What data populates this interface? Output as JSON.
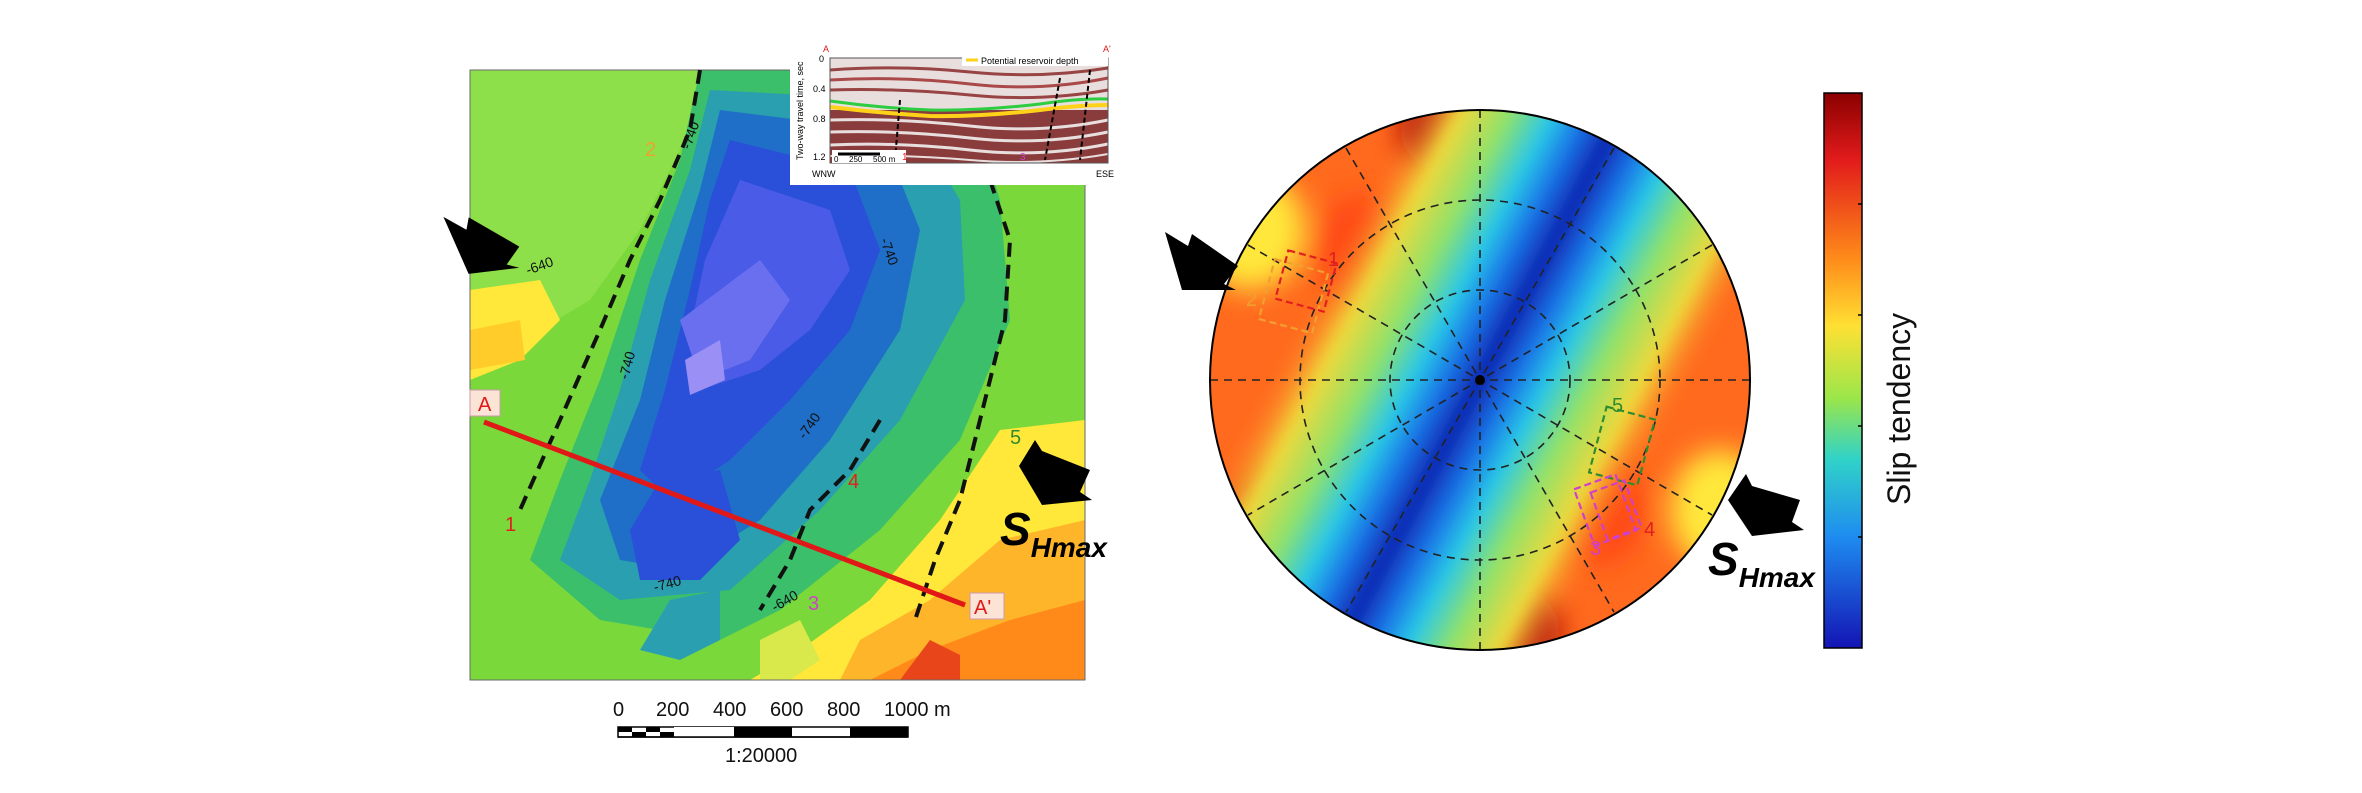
{
  "map": {
    "contours": [
      "-640",
      "-740",
      "-740",
      "-740",
      "-740",
      "-640",
      "-740",
      "-640"
    ],
    "section_start": "A",
    "section_end": "A'",
    "fault_labels": [
      "1",
      "2",
      "3",
      "4",
      "5"
    ],
    "shmax_main": "S",
    "shmax_sub": "Hmax"
  },
  "inset": {
    "top_left": "A",
    "top_right": "A'",
    "legend": "Potential reservoir depth",
    "ylabel": "Two-way travel time, sec",
    "yticks": [
      "0",
      "0.4",
      "0.8",
      "1.2"
    ],
    "scale_ticks": [
      "0",
      "250",
      "500 m"
    ],
    "left_dir": "WNW",
    "right_dir": "ESE",
    "fault_labels": [
      "1",
      "3"
    ]
  },
  "scale": {
    "ticks": [
      "0",
      "200",
      "400",
      "600",
      "800",
      "1000 m"
    ],
    "ratio": "1:20000"
  },
  "stereonet": {
    "zone_labels": [
      "1",
      "2",
      "3",
      "4",
      "5"
    ],
    "shmax_main": "S",
    "shmax_sub": "Hmax"
  },
  "colorbar": {
    "label": "Slip tendency"
  },
  "colors": {
    "fault_red": "#e02020",
    "section_line": "#e01818",
    "zone_orange": "#f0a030",
    "zone_magenta": "#d040c8",
    "zone_green": "#2e8b2e"
  }
}
